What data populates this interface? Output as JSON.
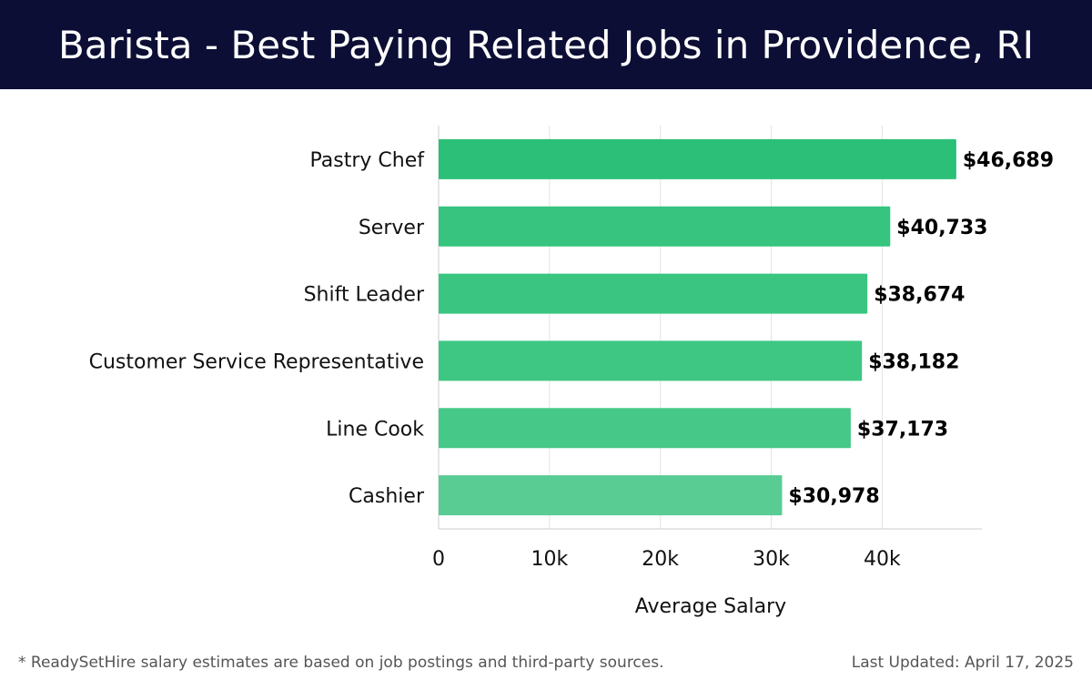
{
  "header": {
    "title": "Barista - Best Paying Related Jobs in Providence, RI"
  },
  "chart_data": {
    "type": "bar",
    "orientation": "horizontal",
    "categories": [
      "Pastry Chef",
      "Server",
      "Shift Leader",
      "Customer Service Representative",
      "Line Cook",
      "Cashier"
    ],
    "values": [
      46689,
      40733,
      38674,
      38182,
      37173,
      30978
    ],
    "value_labels": [
      "$46,689",
      "$40,733",
      "$38,674",
      "$38,182",
      "$37,173",
      "$30,978"
    ],
    "xlabel": "Average Salary",
    "xlim": [
      0,
      49000
    ],
    "xticks": [
      0,
      10000,
      20000,
      30000,
      40000
    ],
    "xtick_labels": [
      "0",
      "10k",
      "20k",
      "30k",
      "40k"
    ],
    "grid": true,
    "bar_colors": [
      "#2bbf77",
      "#36c47e",
      "#3ac681",
      "#3ec783",
      "#46c888",
      "#58cc93"
    ]
  },
  "footer": {
    "note": "* ReadySetHire salary estimates are based on job postings and third-party sources.",
    "updated": "Last Updated: April 17, 2025"
  }
}
